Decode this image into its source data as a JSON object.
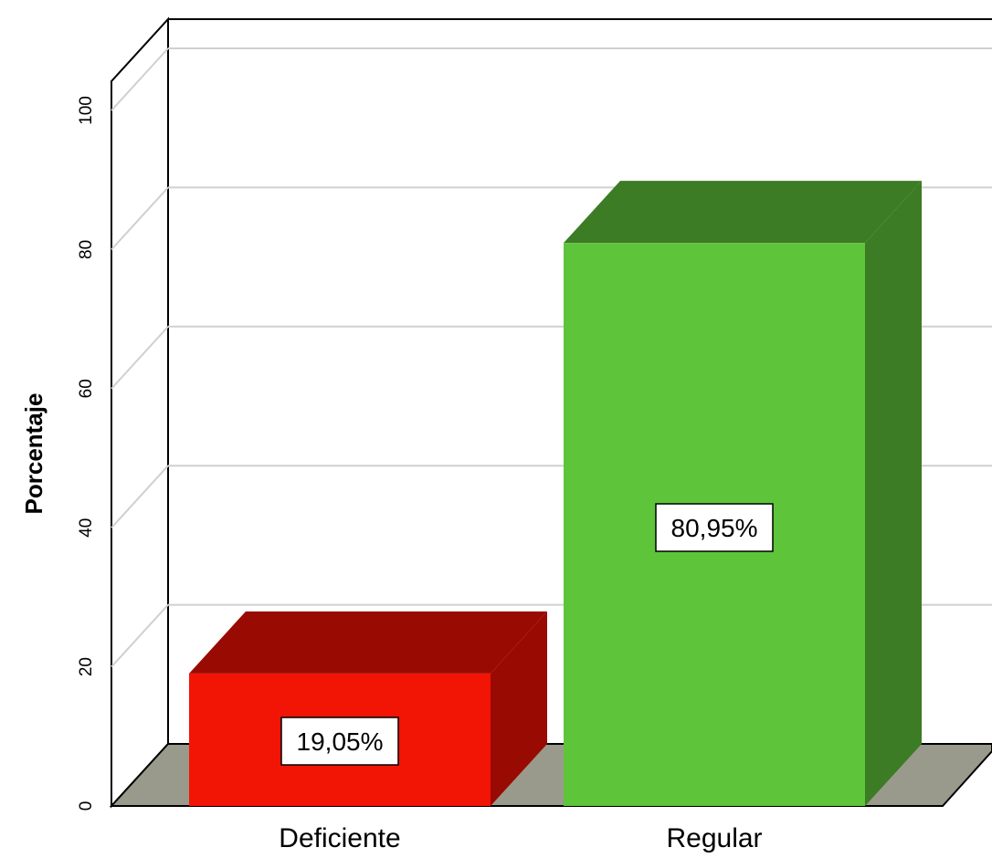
{
  "chart_data": {
    "type": "bar",
    "style": "3d",
    "categories": [
      "Deficiente",
      "Regular"
    ],
    "values": [
      19.05,
      80.95
    ],
    "data_labels": [
      "19,05%",
      "80,95%"
    ],
    "colors": {
      "Deficiente": {
        "front": "#f21505",
        "top": "#990a02",
        "side": "#990a02"
      },
      "Regular": {
        "front": "#5ec43a",
        "top": "#3c7c24",
        "side": "#3c7c24"
      },
      "floor": "#9a9a8c",
      "gridline": "#d0d0d0"
    },
    "xlabel": "",
    "ylabel": "Porcentaje",
    "ylim": [
      0,
      100
    ],
    "yticks": [
      "0",
      "20",
      "40",
      "60",
      "80",
      "100"
    ],
    "grid": true,
    "legend": "none"
  }
}
